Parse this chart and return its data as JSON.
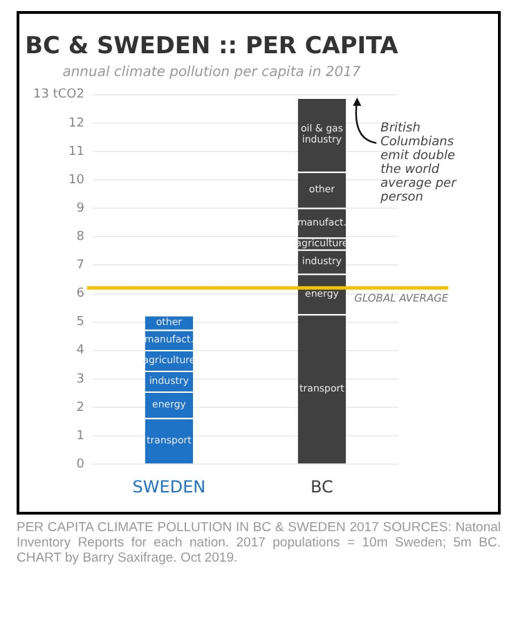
{
  "chart_data": {
    "type": "bar",
    "stacked": true,
    "title": "BC & SWEDEN :: PER CAPITA",
    "subtitle": "annual climate pollution per capita in 2017",
    "categories": [
      "SWEDEN",
      "BC"
    ],
    "series": [
      {
        "name": "transport",
        "colors": [
          "#1f73c6",
          "#404040"
        ],
        "values": [
          1.63,
          5.28
        ]
      },
      {
        "name": "energy",
        "colors": [
          "#1f73c6",
          "#404040"
        ],
        "values": [
          0.93,
          1.42
        ]
      },
      {
        "name": "industry",
        "colors": [
          "#1f73c6",
          "#404040"
        ],
        "values": [
          0.73,
          0.85
        ]
      },
      {
        "name": "agriculture",
        "colors": [
          "#1f73c6",
          "#404040"
        ],
        "values": [
          0.73,
          0.42
        ]
      },
      {
        "name": "manufact.",
        "colors": [
          "#1f73c6",
          "#404040"
        ],
        "values": [
          0.71,
          1.05
        ]
      },
      {
        "name": "other",
        "colors": [
          "#1f73c6",
          "#404040"
        ],
        "values": [
          0.52,
          1.27
        ]
      },
      {
        "name": "oil & gas industry",
        "colors": [
          "#1f73c6",
          "#404040"
        ],
        "values": [
          null,
          2.61
        ]
      }
    ],
    "ylim": [
      0,
      13
    ],
    "yticks": [
      0,
      1,
      2,
      3,
      4,
      5,
      6,
      7,
      8,
      9,
      10,
      11,
      12,
      {
        "value": 13,
        "label": "13 tCO2"
      }
    ],
    "grid": "y",
    "legend": false,
    "ref_lines": [
      {
        "axis": "y",
        "value": 6.2,
        "label": "GLOBAL AVERAGE",
        "color": "#f2c300"
      }
    ],
    "annotations": [
      "British Columbians emit double the world average per person",
      "PER CAPITA CLIMATE POLLUTION IN BC & SWEDEN 2017 SOURCES: Natonal Inventory Reports for each nation. 2017 populations = 10m Sweden; 5m BC. CHART by Barry Saxifrage. Oct 2019."
    ]
  }
}
